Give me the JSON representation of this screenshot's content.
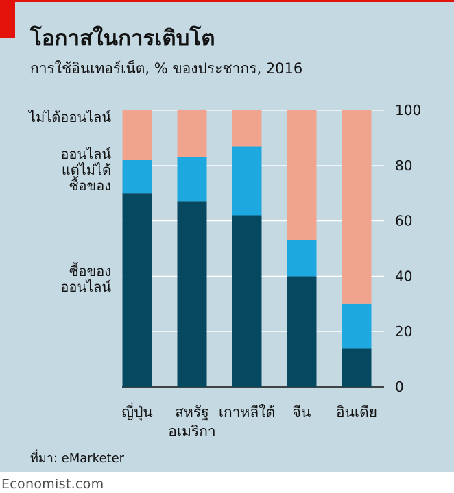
{
  "title": "โอกาสในการเติบโต",
  "subtitle": "การใช้อินเทอร์เน็ต, % ของประชากร, 2016",
  "source": "ที่มา: eMarketer",
  "brand": "Economist.com",
  "colors": {
    "background": "#c5d9e3",
    "accent": "#e3120b",
    "not_online": "#f0a48e",
    "online_not_buying": "#1da8e0",
    "buy_online": "#06485f",
    "gridline": "#ffffff",
    "text": "#121212"
  },
  "chart_data": {
    "type": "bar",
    "stacked": true,
    "categories": [
      "ญี่ปุ่น",
      "สหรัฐ\nอเมริกา",
      "เกาหลีใต้",
      "จีน",
      "อินเดีย"
    ],
    "series": [
      {
        "name": "ซื้อของ\nออนไลน์",
        "color": "#06485f",
        "values": [
          70,
          67,
          62,
          40,
          14
        ]
      },
      {
        "name": "ออนไลน์\nแต่ไม่ได้\nซื้อของ",
        "color": "#1da8e0",
        "values": [
          12,
          16,
          25,
          13,
          16
        ]
      },
      {
        "name": "ไม่ได้ออนไลน์",
        "color": "#f0a48e",
        "values": [
          18,
          17,
          13,
          47,
          70
        ]
      }
    ],
    "yticks": [
      0,
      20,
      40,
      60,
      80,
      100
    ],
    "ylim": [
      0,
      100
    ],
    "y_axis_side": "right",
    "grid": true,
    "legend": "inline-left"
  }
}
